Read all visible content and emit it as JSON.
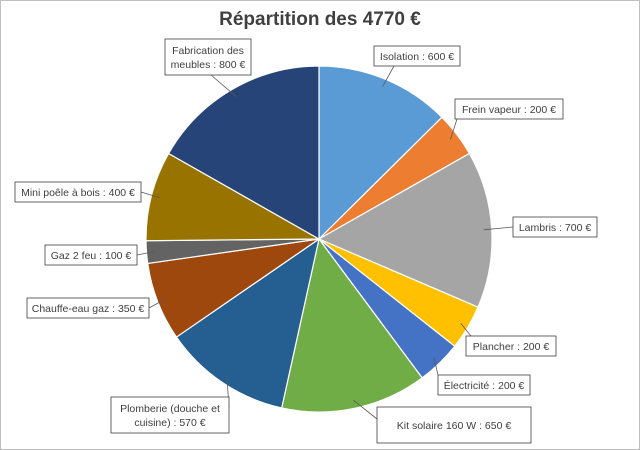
{
  "chart_data": {
    "type": "pie",
    "title": "Répartition des 4770 €",
    "slices": [
      {
        "label": [
          "Isolation : 600 €"
        ],
        "value": 600,
        "color": "#5b9bd5"
      },
      {
        "label": [
          "Frein vapeur : 200 €"
        ],
        "value": 200,
        "color": "#ed7d31"
      },
      {
        "label": [
          "Lambris : 700 €"
        ],
        "value": 700,
        "color": "#a5a5a5"
      },
      {
        "label": [
          "Plancher : 200 €"
        ],
        "value": 200,
        "color": "#ffc000"
      },
      {
        "label": [
          "Électricité : 200 €"
        ],
        "value": 200,
        "color": "#4472c4"
      },
      {
        "label": [
          "Kit solaire 160 W : 650 €"
        ],
        "value": 650,
        "color": "#70ad47"
      },
      {
        "label": [
          "Plomberie (douche et",
          "cuisine) : 570 €"
        ],
        "value": 570,
        "color": "#255e91"
      },
      {
        "label": [
          "Chauffe-eau gaz : 350 €"
        ],
        "value": 350,
        "color": "#9e480e"
      },
      {
        "label": [
          "Gaz 2 feu : 100 €"
        ],
        "value": 100,
        "color": "#636363"
      },
      {
        "label": [
          "Mini poêle à bois : 400 €"
        ],
        "value": 400,
        "color": "#997300"
      },
      {
        "label": [
          "Fabrication des",
          "meubles : 800 €"
        ],
        "value": 800,
        "color": "#264478"
      }
    ]
  }
}
